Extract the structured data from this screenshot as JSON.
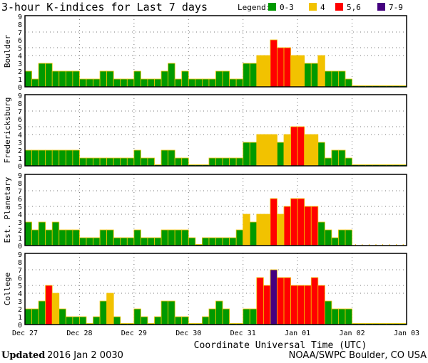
{
  "chart_data": {
    "type": "bar",
    "title": "3-hour K-indices for Last 7 days",
    "legend": {
      "label": "Legend:",
      "placement": "top-right",
      "entries": [
        {
          "label": "0-3",
          "color": "#009900"
        },
        {
          "label": "4",
          "color": "#f2c200"
        },
        {
          "label": "5,6",
          "color": "#ff0000"
        },
        {
          "label": "7-9",
          "color": "#44007f"
        }
      ]
    },
    "xlabel": "Coordinate Universal Time (UTC)",
    "x_ticks": [
      "Dec 27",
      "Dec 28",
      "Dec 29",
      "Dec 30",
      "Dec 31",
      "Jan 01",
      "Jan 02",
      "Jan 03"
    ],
    "y_ticks": [
      "0",
      "1",
      "2",
      "3",
      "4",
      "5",
      "6",
      "7",
      "8",
      "9"
    ],
    "ylim": [
      0,
      9
    ],
    "bars_per_day": 8,
    "grid": {
      "horizontal_levels": [
        4,
        5,
        7
      ],
      "vertical": "day boundaries"
    },
    "series": [
      {
        "name": "Boulder",
        "values": [
          2,
          1,
          3,
          3,
          2,
          2,
          2,
          2,
          1,
          1,
          1,
          2,
          2,
          1,
          1,
          1,
          2,
          1,
          1,
          1,
          2,
          3,
          1,
          2,
          1,
          1,
          1,
          1,
          2,
          2,
          1,
          1,
          3,
          3,
          4,
          4,
          6,
          5,
          5,
          4,
          4,
          3,
          3,
          4,
          2,
          2,
          2,
          1,
          0,
          0,
          0,
          0,
          0,
          0,
          0,
          0
        ]
      },
      {
        "name": "Fredericksburg",
        "values": [
          2,
          2,
          2,
          2,
          2,
          2,
          2,
          2,
          1,
          1,
          1,
          1,
          1,
          1,
          1,
          1,
          2,
          1,
          1,
          0,
          2,
          2,
          1,
          1,
          0,
          0,
          0,
          1,
          1,
          1,
          1,
          1,
          3,
          3,
          4,
          4,
          4,
          3,
          4,
          5,
          5,
          4,
          4,
          3,
          1,
          2,
          2,
          1,
          0,
          0,
          0,
          0,
          0,
          0,
          0,
          0
        ]
      },
      {
        "name": "Est. Planetary",
        "values": [
          3,
          2,
          3,
          2,
          3,
          2,
          2,
          2,
          1,
          1,
          1,
          2,
          2,
          1,
          1,
          1,
          2,
          1,
          1,
          1,
          2,
          2,
          2,
          2,
          1,
          0,
          1,
          1,
          1,
          1,
          1,
          2,
          4,
          3,
          4,
          4,
          6,
          4,
          5,
          6,
          6,
          5,
          5,
          3,
          2,
          1,
          2,
          2,
          null,
          null,
          null,
          null,
          null,
          null,
          null,
          null
        ]
      },
      {
        "name": "College",
        "values": [
          2,
          2,
          3,
          5,
          4,
          2,
          1,
          1,
          1,
          0,
          1,
          3,
          4,
          1,
          0,
          0,
          2,
          1,
          0,
          1,
          3,
          3,
          1,
          1,
          0,
          0,
          1,
          2,
          3,
          2,
          0,
          0,
          2,
          2,
          6,
          5,
          7,
          6,
          6,
          5,
          5,
          5,
          6,
          5,
          3,
          2,
          2,
          2,
          0,
          0,
          0,
          0,
          0,
          0,
          0,
          0
        ]
      }
    ]
  },
  "footer": {
    "updated_label": "Updated",
    "updated_value": "2016 Jan  2 0030",
    "source": "NOAA/SWPC Boulder, CO USA"
  }
}
